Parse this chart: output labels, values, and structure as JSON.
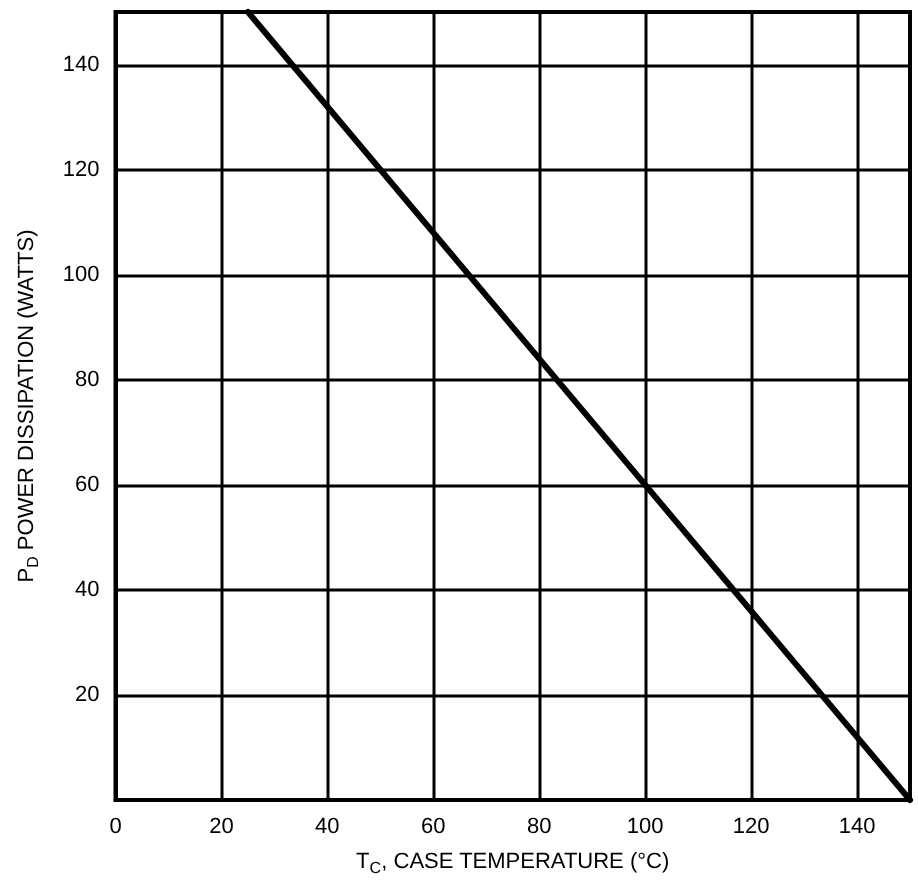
{
  "chart_data": {
    "type": "line",
    "xlabel": "T$_{C}$, CASE TEMPERATURE (°C)",
    "ylabel": "P$_{D}$ POWER DISSIPATION (WATTS)",
    "x": [
      25,
      150
    ],
    "series": [
      {
        "color": "#000000",
        "values": [
          150,
          0
        ]
      }
    ],
    "xlim": [
      0,
      150
    ],
    "xticks": [
      0,
      20,
      40,
      60,
      80,
      100,
      120,
      140
    ],
    "ylim": [
      0,
      150
    ],
    "yticks": [
      {
        "value": 0,
        "label": null
      },
      20,
      40,
      60,
      80,
      100,
      120,
      140
    ],
    "grid": true,
    "marker": "none",
    "line_style": "solid"
  }
}
